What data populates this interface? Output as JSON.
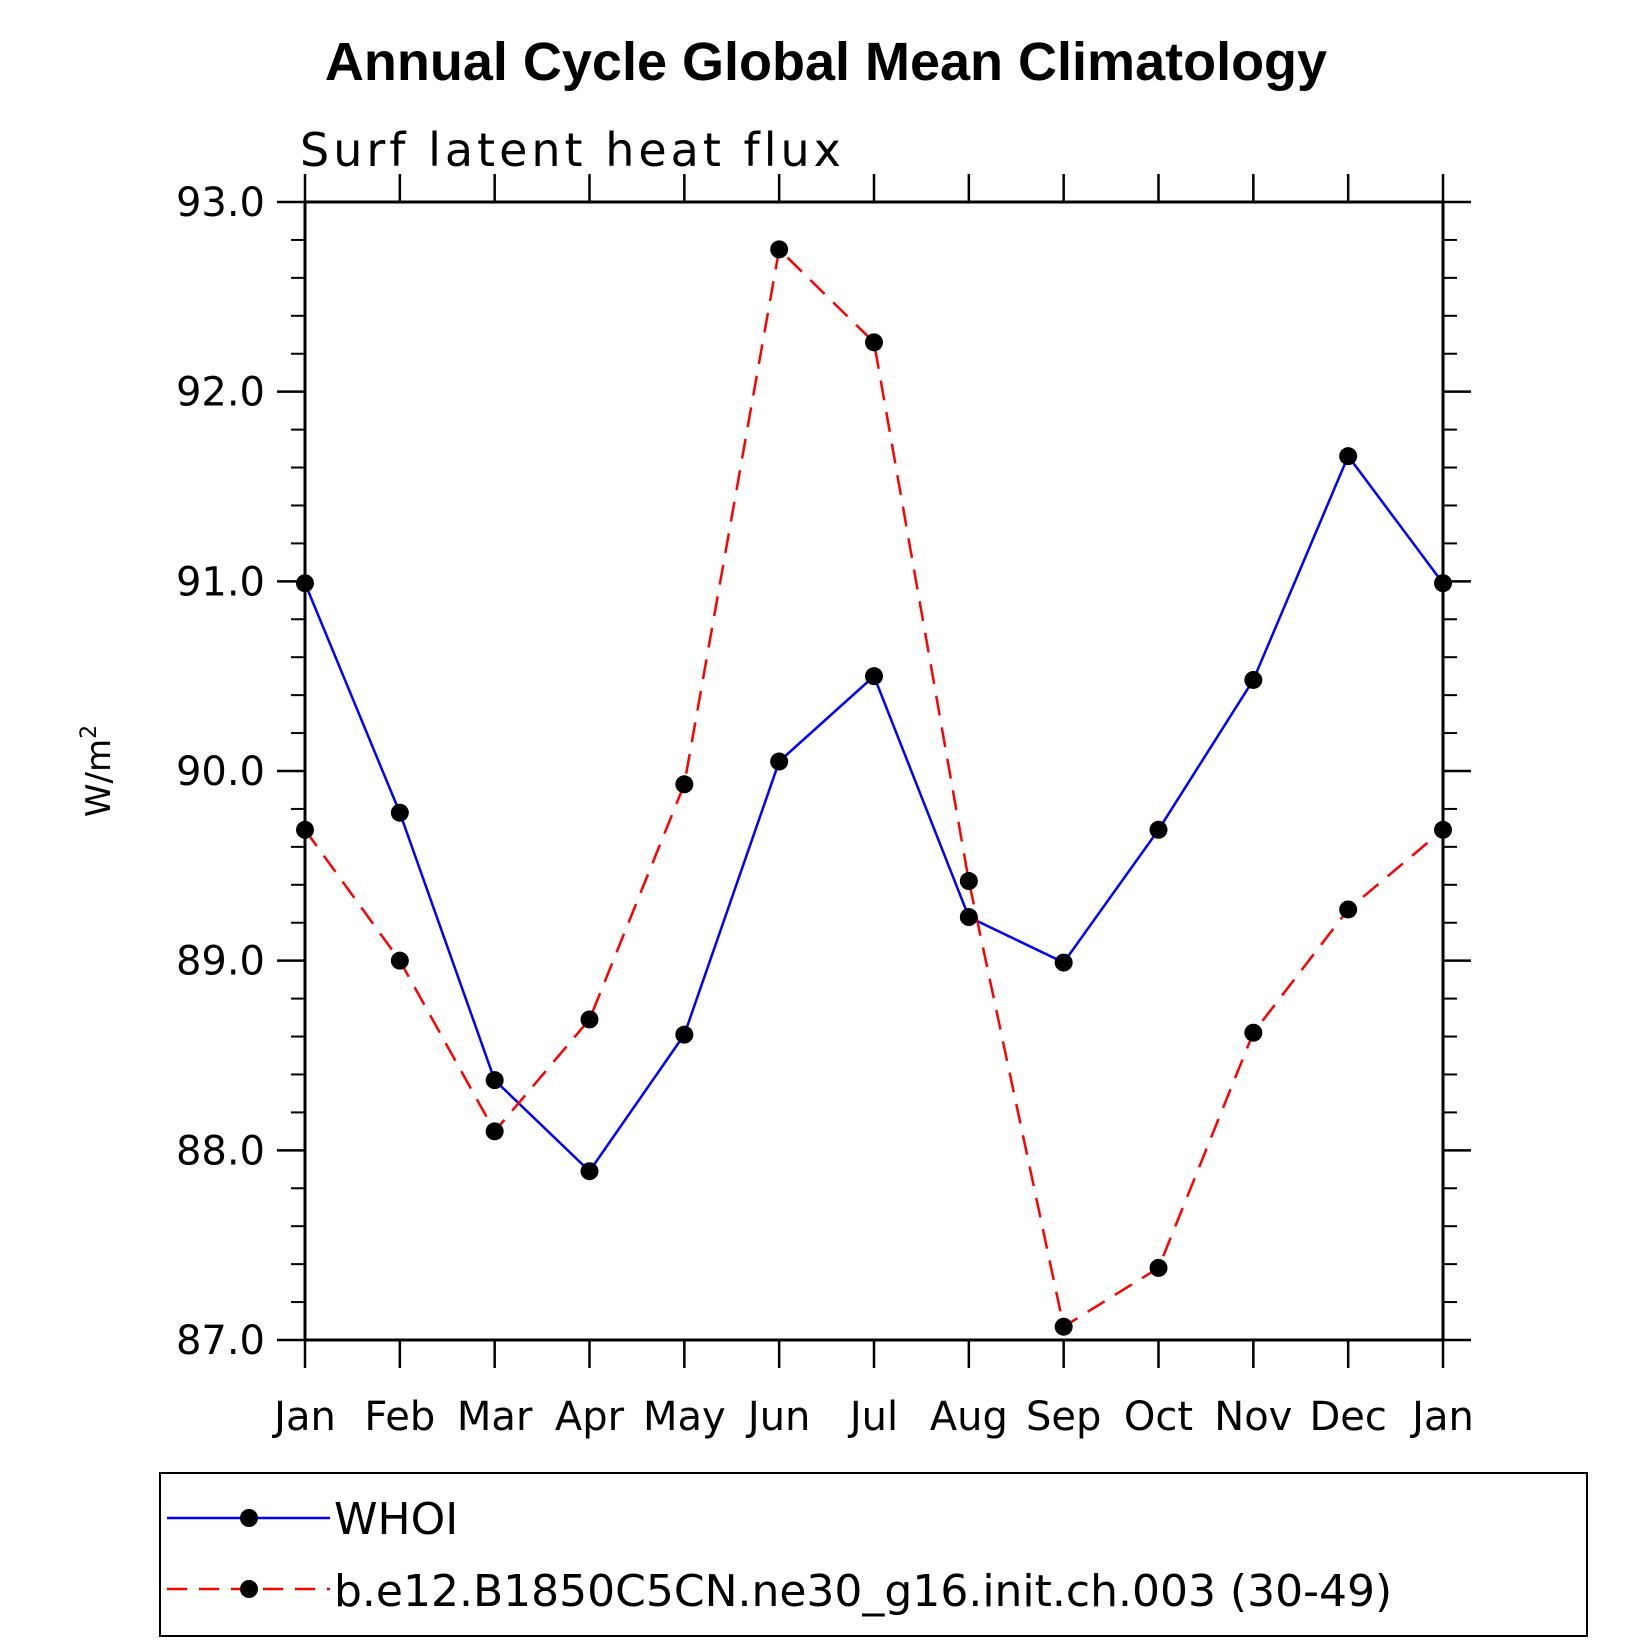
{
  "chart_data": {
    "type": "line",
    "title": "Annual Cycle Global Mean Climatology",
    "subtitle": "Surf latent heat flux",
    "ylabel": "W/m",
    "ylabel_sup": "2",
    "xlabel": "",
    "categories": [
      "Jan",
      "Feb",
      "Mar",
      "Apr",
      "May",
      "Jun",
      "Jul",
      "Aug",
      "Sep",
      "Oct",
      "Nov",
      "Dec",
      "Jan"
    ],
    "ylim": [
      87.0,
      93.0
    ],
    "yticks": [
      "87.0",
      "88.0",
      "89.0",
      "90.0",
      "91.0",
      "92.0",
      "93.0"
    ],
    "series": [
      {
        "name": "WHOI",
        "color": "#0000ff",
        "style": "solid",
        "values": [
          90.99,
          89.78,
          88.37,
          87.89,
          88.61,
          90.05,
          90.5,
          89.23,
          88.99,
          89.69,
          90.48,
          91.66,
          90.99
        ]
      },
      {
        "name": "b.e12.B1850C5CN.ne30_g16.init.ch.003 (30-49)",
        "color": "#ff0000",
        "style": "dashed",
        "values": [
          89.69,
          89.0,
          88.1,
          88.69,
          89.93,
          92.75,
          92.26,
          89.42,
          87.07,
          87.38,
          88.62,
          89.27,
          89.69
        ]
      }
    ],
    "legend_placement": "bottom",
    "marker": "filled-circle"
  }
}
